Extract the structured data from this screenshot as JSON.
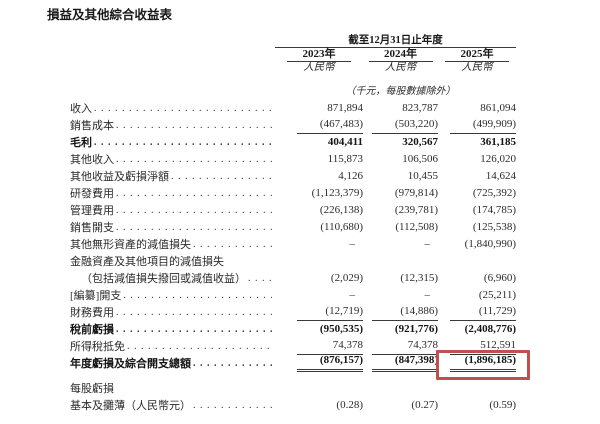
{
  "title": "損益及其他綜合收益表",
  "table": {
    "period_header": "截至12月31日止年度",
    "columns": [
      "2023年",
      "2024年",
      "2025年"
    ],
    "currency_labels": [
      "人民幣",
      "人民幣",
      "人民幣"
    ],
    "unit_note": "（千元，每股數據除外）",
    "rows": [
      {
        "label": "收入",
        "values": [
          "871,894",
          "823,787",
          "861,094"
        ]
      },
      {
        "label": "銷售成本",
        "values": [
          "(467,483)",
          "(503,220)",
          "(499,909)"
        ],
        "underline": "single"
      },
      {
        "label": "毛利",
        "values": [
          "404,411",
          "320,567",
          "361,185"
        ],
        "bold": true
      },
      {
        "label": "其他收入",
        "values": [
          "115,873",
          "106,506",
          "126,020"
        ]
      },
      {
        "label": "其他收益及虧損淨額",
        "values": [
          "4,126",
          "10,455",
          "14,624"
        ]
      },
      {
        "label": "研發費用",
        "values": [
          "(1,123,379)",
          "(979,814)",
          "(725,392)"
        ]
      },
      {
        "label": "管理費用",
        "values": [
          "(226,138)",
          "(239,781)",
          "(174,785)"
        ]
      },
      {
        "label": "銷售開支",
        "values": [
          "(110,680)",
          "(112,508)",
          "(125,538)"
        ]
      },
      {
        "label": "其他無形資產的減值損失",
        "values": [
          "–",
          "–",
          "(1,840,990)"
        ]
      },
      {
        "label": "金融資產及其他項目的減值損失",
        "values": null,
        "no_leader": true
      },
      {
        "label": "（包括減值損失撥回或減值收益）",
        "values": [
          "(2,029)",
          "(12,315)",
          "(6,960)"
        ],
        "indent": true
      },
      {
        "label": "[編纂]開支",
        "values": [
          "–",
          "–",
          "(25,211)"
        ]
      },
      {
        "label": "財務費用",
        "values": [
          "(12,719)",
          "(14,886)",
          "(11,729)"
        ],
        "underline": "single"
      },
      {
        "label": "稅前虧損",
        "values": [
          "(950,535)",
          "(921,776)",
          "(2,408,776)"
        ],
        "bold": true
      },
      {
        "label": "所得稅抵免",
        "values": [
          "74,378",
          "74,378",
          "512,591"
        ],
        "underline": "single"
      },
      {
        "label": "年度虧損及綜合開支總額",
        "values": [
          "(876,157)",
          "(847,398)",
          "(1,896,185)"
        ],
        "bold": true,
        "underline": "double"
      },
      {
        "label": "每股虧損",
        "values": null,
        "no_leader": true,
        "gap_before": true
      },
      {
        "label": "基本及攤薄（人民幣元）",
        "values": [
          "(0.28)",
          "(0.27)",
          "(0.59)"
        ]
      }
    ]
  },
  "highlight": {
    "color": "#c0504d",
    "value": "(1,896,185)",
    "note": "red box around 2025 total comprehensive expense"
  }
}
